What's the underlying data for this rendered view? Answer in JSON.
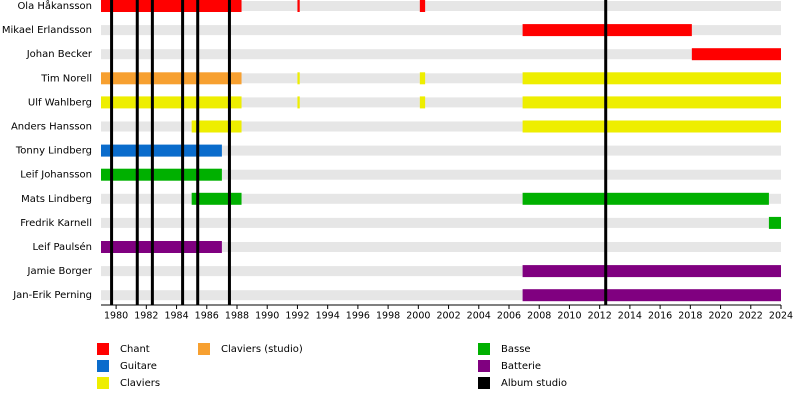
{
  "chart_data": {
    "type": "timeline",
    "xlim": [
      1979,
      2024
    ],
    "xticks": [
      1980,
      1982,
      1984,
      1986,
      1988,
      1990,
      1992,
      1994,
      1996,
      1998,
      2000,
      2002,
      2004,
      2006,
      2008,
      2010,
      2012,
      2014,
      2016,
      2018,
      2020,
      2022,
      2024
    ],
    "members": [
      {
        "name": "Ola Håkansson",
        "periods": [
          {
            "start": 1979,
            "end": 1988.3,
            "color": "#ff0000"
          },
          {
            "start": 1992,
            "end": 1992.15,
            "color": "#ff0000"
          },
          {
            "start": 2000.1,
            "end": 2000.45,
            "color": "#ff0000"
          }
        ]
      },
      {
        "name": "Mikael Erlandsson",
        "periods": [
          {
            "start": 2006.9,
            "end": 2018.1,
            "color": "#ff0000"
          }
        ]
      },
      {
        "name": "Johan Becker",
        "periods": [
          {
            "start": 2018.1,
            "end": 2024,
            "color": "#ff0000"
          }
        ]
      },
      {
        "name": "Tim Norell",
        "periods": [
          {
            "start": 1979,
            "end": 1988.3,
            "color": "#f7a030"
          },
          {
            "start": 1992,
            "end": 1992.15,
            "color": "#eeee00"
          },
          {
            "start": 2000.1,
            "end": 2000.45,
            "color": "#eeee00"
          },
          {
            "start": 2006.9,
            "end": 2024,
            "color": "#eeee00"
          }
        ]
      },
      {
        "name": "Ulf Wahlberg",
        "periods": [
          {
            "start": 1979,
            "end": 1988.3,
            "color": "#eeee00"
          },
          {
            "start": 1992,
            "end": 1992.15,
            "color": "#eeee00"
          },
          {
            "start": 2000.1,
            "end": 2000.45,
            "color": "#eeee00"
          },
          {
            "start": 2006.9,
            "end": 2024,
            "color": "#eeee00"
          }
        ]
      },
      {
        "name": "Anders Hansson",
        "periods": [
          {
            "start": 1985,
            "end": 1988.3,
            "color": "#eeee00"
          },
          {
            "start": 2006.9,
            "end": 2024,
            "color": "#eeee00"
          }
        ]
      },
      {
        "name": "Tonny Lindberg",
        "periods": [
          {
            "start": 1979,
            "end": 1987,
            "color": "#0a6ccc"
          }
        ]
      },
      {
        "name": "Leif Johansson",
        "periods": [
          {
            "start": 1979,
            "end": 1987,
            "color": "#00b000"
          }
        ]
      },
      {
        "name": "Mats Lindberg",
        "periods": [
          {
            "start": 1985,
            "end": 1988.3,
            "color": "#00b000"
          },
          {
            "start": 2006.9,
            "end": 2023.2,
            "color": "#00b000"
          }
        ]
      },
      {
        "name": "Fredrik Karnell",
        "periods": [
          {
            "start": 2023.2,
            "end": 2024,
            "color": "#00b000"
          }
        ]
      },
      {
        "name": "Leif Paulsén",
        "periods": [
          {
            "start": 1979,
            "end": 1987,
            "color": "#800080"
          }
        ]
      },
      {
        "name": "Jamie Borger",
        "periods": [
          {
            "start": 2006.9,
            "end": 2024,
            "color": "#800080"
          }
        ]
      },
      {
        "name": "Jan-Erik Perning",
        "periods": [
          {
            "start": 2006.9,
            "end": 2024,
            "color": "#800080"
          }
        ]
      }
    ],
    "albums": [
      1979.7,
      1981.4,
      1982.4,
      1984.4,
      1985.4,
      1987.5,
      2012.4
    ],
    "legend": [
      {
        "label": "Chant",
        "color": "#ff0000"
      },
      {
        "label": "Guitare",
        "color": "#0a6ccc"
      },
      {
        "label": "Claviers",
        "color": "#eeee00"
      },
      {
        "label": "Claviers (studio)",
        "color": "#f7a030"
      },
      {
        "label": "Basse",
        "color": "#00b000"
      },
      {
        "label": "Batterie",
        "color": "#800080"
      },
      {
        "label": "Album studio",
        "color": "#000000"
      }
    ]
  }
}
